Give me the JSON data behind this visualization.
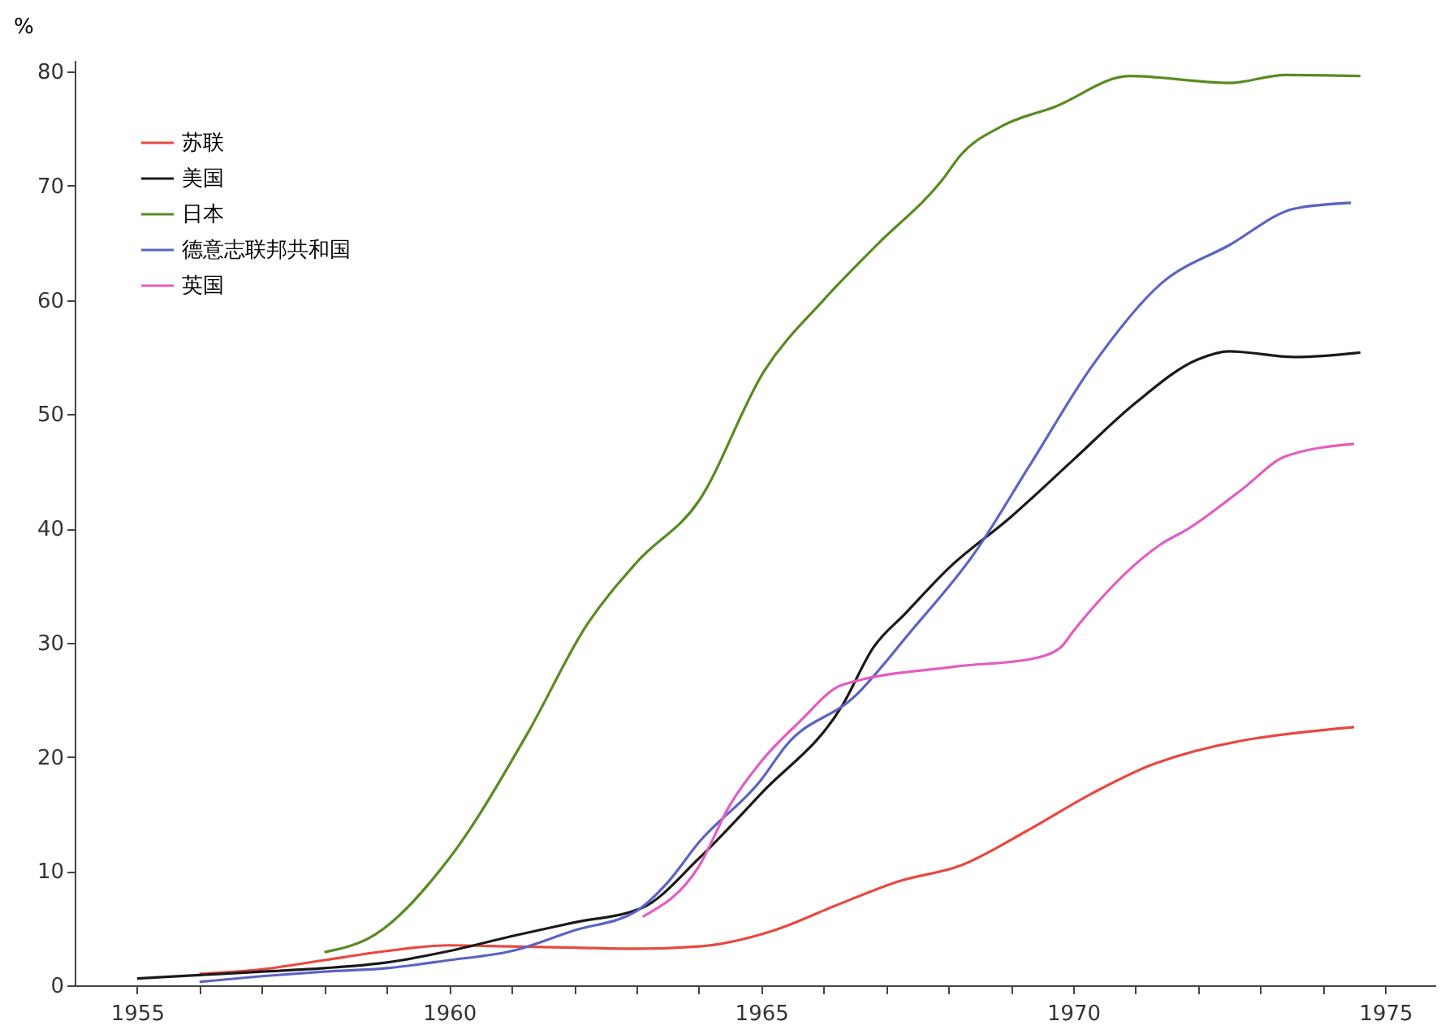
{
  "chart_data": {
    "type": "line",
    "ylabel": "%",
    "xlim": [
      1954,
      1975.8
    ],
    "ylim": [
      0,
      81
    ],
    "xticks": [
      1955,
      {
        "value": 1956,
        "label": null
      },
      {
        "value": 1957,
        "label": null
      },
      {
        "value": 1958,
        "label": null
      },
      {
        "value": 1959,
        "label": null
      },
      1960,
      {
        "value": 1961,
        "label": null
      },
      {
        "value": 1962,
        "label": null
      },
      {
        "value": 1963,
        "label": null
      },
      {
        "value": 1964,
        "label": null
      },
      1965,
      {
        "value": 1966,
        "label": null
      },
      {
        "value": 1967,
        "label": null
      },
      {
        "value": 1968,
        "label": null
      },
      {
        "value": 1969,
        "label": null
      },
      1970,
      {
        "value": 1971,
        "label": null
      },
      {
        "value": 1972,
        "label": null
      },
      {
        "value": 1973,
        "label": null
      },
      {
        "value": 1974,
        "label": null
      },
      1975
    ],
    "yticks": [
      0,
      10,
      20,
      30,
      40,
      50,
      60,
      70,
      80
    ],
    "grid": false,
    "legend": "top left",
    "marker": "none",
    "line_style": "solid",
    "series": [
      {
        "name": "苏联",
        "color": "#e8483f",
        "x": [
          1956,
          1957,
          1958,
          1959,
          1960,
          1961,
          1962,
          1963,
          1964,
          1965.2,
          1966.2,
          1967.2,
          1968.2,
          1969.25,
          1970.3,
          1971.3,
          1974.5
        ],
        "values": [
          1.0,
          1.4,
          2.2,
          3.0,
          3.5,
          3.4,
          3.3,
          3.2,
          3.4,
          4.8,
          7.0,
          9.1,
          10.5,
          13.5,
          16.8,
          19.4,
          22.6
        ]
      },
      {
        "name": "美国",
        "color": "#1a1a1a",
        "x": [
          1955,
          1956,
          1957,
          1958,
          1959,
          1960,
          1961,
          1962,
          1963.1,
          1964,
          1965,
          1966.3,
          1966.8,
          1967.3,
          1968,
          1969,
          1970,
          1971,
          1972,
          1972.5,
          1973.55,
          1974.6
        ],
        "values": [
          0.6,
          0.9,
          1.2,
          1.5,
          2.0,
          3.0,
          4.3,
          5.5,
          6.8,
          11.1,
          16.8,
          24.5,
          29.6,
          32.5,
          36.5,
          41,
          46,
          51,
          54.8,
          55.5,
          55.0,
          55.4
        ]
      },
      {
        "name": "日本",
        "color": "#5a8a22",
        "x": [
          1958,
          1958.8,
          1960,
          1961.25,
          1962.2,
          1963,
          1964,
          1965.05,
          1966,
          1966.85,
          1967.9,
          1968.2,
          1968.85,
          1969.7,
          1970.9,
          1972.5,
          1973.4,
          1974.6
        ],
        "values": [
          2.9,
          4.4,
          11.1,
          22,
          31.5,
          37,
          42.4,
          53.8,
          60,
          64.8,
          70.5,
          72.7,
          75.2,
          76.9,
          79.6,
          79.0,
          79.7,
          79.6
        ]
      },
      {
        "name": "德意志联邦共和国",
        "color": "#5b63c4",
        "x": [
          1956,
          1957,
          1958,
          1959,
          1960,
          1961,
          1962,
          1963,
          1963.5,
          1964,
          1965,
          1965.4,
          1966.5,
          1967.4,
          1968.4,
          1969.3,
          1970.3,
          1971.4,
          1972.5,
          1973.55,
          1974.45
        ],
        "values": [
          0.3,
          0.8,
          1.2,
          1.5,
          2.2,
          3.0,
          4.8,
          6.5,
          9.0,
          12.5,
          18.0,
          21.0,
          25.3,
          31.0,
          37.7,
          45.5,
          54.2,
          61.4,
          64.8,
          68.0,
          68.5
        ]
      },
      {
        "name": "英国",
        "color": "#e35dc0",
        "x": [
          1963.1,
          1964,
          1964.5,
          1965,
          1965.6,
          1966.3,
          1968.1,
          1969.35,
          1969.8,
          1970,
          1971.4,
          1971.85,
          1972.7,
          1973.4,
          1974.5
        ],
        "values": [
          6.0,
          10.4,
          15.8,
          19.6,
          23.0,
          26.3,
          27.9,
          28.6,
          29.6,
          31.0,
          38.6,
          40.0,
          43.4,
          46.3,
          47.4
        ]
      }
    ]
  }
}
